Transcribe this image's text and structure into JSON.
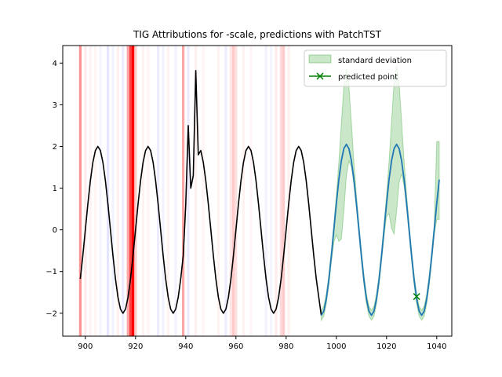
{
  "chart_data": {
    "type": "line",
    "title": "TIG Attributions for -scale, predictions with PatchTST",
    "xlabel": "",
    "ylabel": "",
    "xlim": [
      891,
      1046
    ],
    "ylim": [
      -2.55,
      4.42
    ],
    "x_ticks": [
      900,
      920,
      940,
      960,
      980,
      1000,
      1020,
      1040
    ],
    "y_ticks": [
      -2,
      -1,
      0,
      1,
      2,
      3,
      4
    ],
    "x_tick_labels": [
      "900",
      "920",
      "940",
      "960",
      "980",
      "1000",
      "1020",
      "1040"
    ],
    "y_tick_labels": [
      "−2",
      "−1",
      "0",
      "1",
      "2",
      "3",
      "4"
    ],
    "grid": false,
    "legend_position": "top-right",
    "legend": [
      {
        "label": "standard deviation",
        "color": "#2ca02c"
      },
      {
        "label": "predicted point",
        "color": "#008000"
      }
    ],
    "colors": {
      "history": "#000000",
      "prediction": "#1f77b4",
      "std_band": "#2ca02c",
      "predicted_marker": "#008000",
      "attribution_positive": "#ff0000",
      "attribution_negative": "#0000ff"
    },
    "history": {
      "x_start": 898,
      "x_end": 993,
      "period": 20,
      "amplitude": 2,
      "phase_x": 905,
      "spikes": [
        {
          "x": 940,
          "y": 0.6
        },
        {
          "x": 941,
          "y": 2.5
        },
        {
          "x": 942,
          "y": 1.0
        },
        {
          "x": 943,
          "y": 1.3
        },
        {
          "x": 944,
          "y": 3.82
        },
        {
          "x": 945,
          "y": 1.8
        }
      ]
    },
    "prediction": {
      "x_start": 994,
      "x_end": 1041,
      "period": 20,
      "amplitude": 2.05,
      "phase_x": 1004
    },
    "std_band": {
      "peak_upper": [
        {
          "x": 1004,
          "y": 3.85
        },
        {
          "x": 1024,
          "y": 3.95
        }
      ],
      "last": {
        "x": 1041,
        "lower": 0.25,
        "upper": 2.12
      },
      "peak_lower": [
        {
          "x": 1002,
          "y": -0.22
        },
        {
          "x": 1023,
          "y": -0.1
        }
      ]
    },
    "predicted_point": {
      "x": 1032,
      "y": -1.6
    },
    "attributions": [
      {
        "x": 898,
        "w": 1,
        "sign": 1,
        "strength": 0.42
      },
      {
        "x": 900,
        "w": 1,
        "sign": 1,
        "strength": 0.08
      },
      {
        "x": 902,
        "w": 1,
        "sign": 1,
        "strength": 0.05
      },
      {
        "x": 904,
        "w": 1,
        "sign": 1,
        "strength": 0.04
      },
      {
        "x": 906,
        "w": 1,
        "sign": -1,
        "strength": 0.04
      },
      {
        "x": 909,
        "w": 1,
        "sign": -1,
        "strength": 0.1
      },
      {
        "x": 911,
        "w": 1,
        "sign": -1,
        "strength": 0.05
      },
      {
        "x": 913,
        "w": 1,
        "sign": 1,
        "strength": 0.06
      },
      {
        "x": 915,
        "w": 1,
        "sign": -1,
        "strength": 0.08
      },
      {
        "x": 917,
        "w": 1,
        "sign": 1,
        "strength": 0.35
      },
      {
        "x": 918,
        "w": 1,
        "sign": 1,
        "strength": 0.75
      },
      {
        "x": 919,
        "w": 1,
        "sign": 1,
        "strength": 1.0
      },
      {
        "x": 920,
        "w": 1,
        "sign": 1,
        "strength": 0.2
      },
      {
        "x": 923,
        "w": 1,
        "sign": 1,
        "strength": 0.05
      },
      {
        "x": 925,
        "w": 1,
        "sign": 1,
        "strength": 0.04
      },
      {
        "x": 929,
        "w": 1,
        "sign": -1,
        "strength": 0.07
      },
      {
        "x": 931,
        "w": 1,
        "sign": -1,
        "strength": 0.05
      },
      {
        "x": 933,
        "w": 1,
        "sign": 1,
        "strength": 0.05
      },
      {
        "x": 936,
        "w": 1,
        "sign": -1,
        "strength": 0.05
      },
      {
        "x": 939,
        "w": 1,
        "sign": 1,
        "strength": 0.35
      },
      {
        "x": 941,
        "w": 1,
        "sign": -1,
        "strength": 0.08
      },
      {
        "x": 944,
        "w": 1,
        "sign": 1,
        "strength": 0.06
      },
      {
        "x": 947,
        "w": 1,
        "sign": 1,
        "strength": 0.04
      },
      {
        "x": 953,
        "w": 1,
        "sign": 1,
        "strength": 0.05
      },
      {
        "x": 956,
        "w": 1,
        "sign": -1,
        "strength": 0.07
      },
      {
        "x": 958,
        "w": 1,
        "sign": 1,
        "strength": 0.1
      },
      {
        "x": 959,
        "w": 1,
        "sign": 1,
        "strength": 0.2
      },
      {
        "x": 960,
        "w": 1,
        "sign": 1,
        "strength": 0.12
      },
      {
        "x": 963,
        "w": 1,
        "sign": 1,
        "strength": 0.05
      },
      {
        "x": 966,
        "w": 1,
        "sign": 1,
        "strength": 0.04
      },
      {
        "x": 972,
        "w": 1,
        "sign": -1,
        "strength": 0.05
      },
      {
        "x": 974,
        "w": 1,
        "sign": -1,
        "strength": 0.04
      },
      {
        "x": 976,
        "w": 1,
        "sign": 1,
        "strength": 0.08
      },
      {
        "x": 978,
        "w": 1,
        "sign": 1,
        "strength": 0.15
      },
      {
        "x": 979,
        "w": 1,
        "sign": 1,
        "strength": 0.2
      },
      {
        "x": 981,
        "w": 1,
        "sign": 1,
        "strength": 0.06
      }
    ]
  }
}
